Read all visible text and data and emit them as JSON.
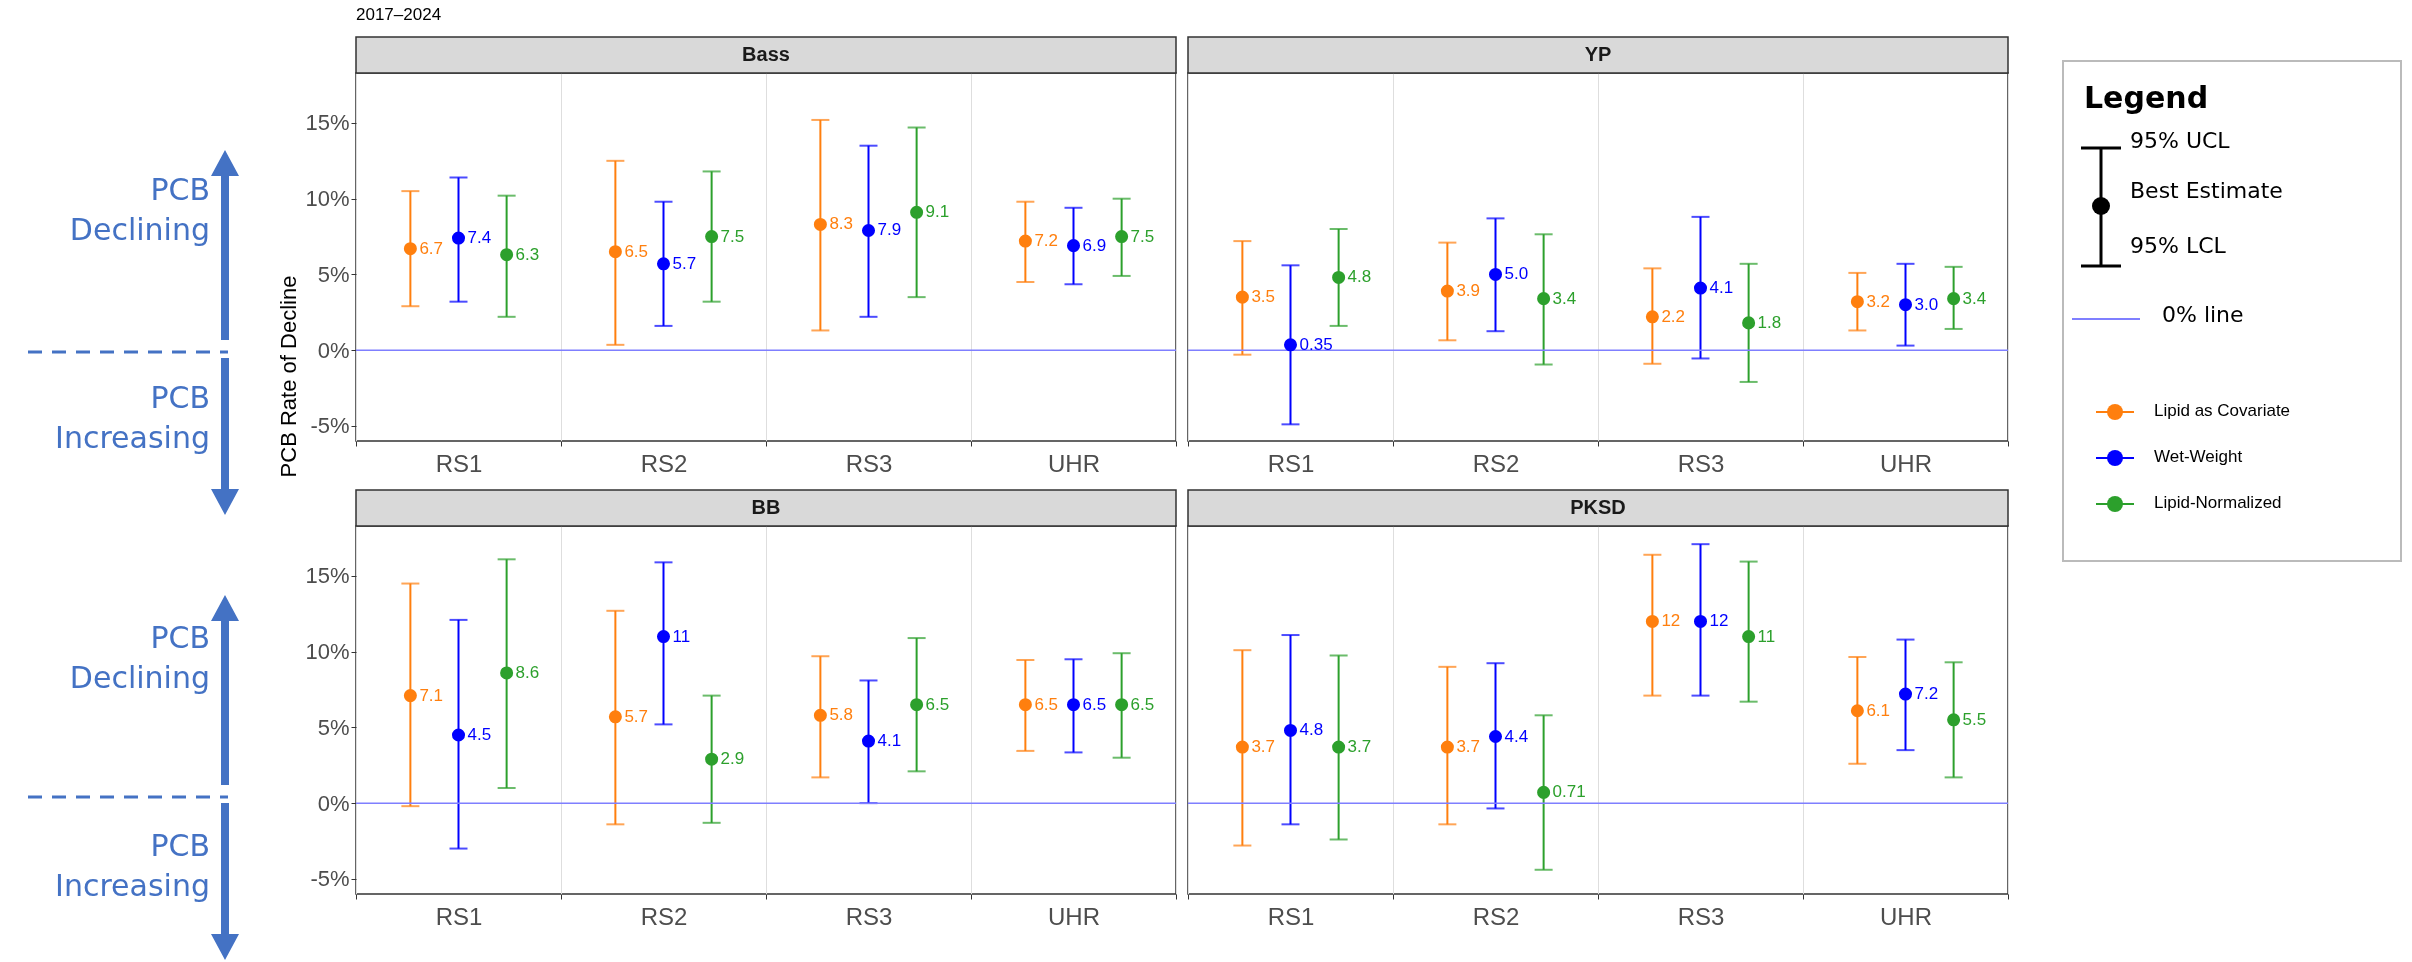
{
  "chart_data": [
    {
      "type": "scatter",
      "title": "Bass",
      "subtitle": "2017–2024",
      "ylabel": "PCB Rate of Decline",
      "legend_title": "Legend",
      "legend": "right",
      "marker": "circle",
      "grid": "x",
      "annotations": [
        "PCB Declining",
        "PCB Increasing",
        "PCB Declining",
        "PCB Increasing",
        "95% UCL",
        "Best Estimate",
        "95% LCL"
      ],
      "categories": [
        "RS1",
        "RS2",
        "RS3",
        "UHR"
      ],
      "ylim": [
        -6.0,
        18.3
      ],
      "yticks": [
        {
          "value": -5,
          "label": "-5%"
        },
        {
          "value": 0,
          "label": "0%"
        },
        {
          "value": 5,
          "label": "5%"
        },
        {
          "value": 10,
          "label": "10%"
        },
        {
          "value": 15,
          "label": "15%"
        }
      ],
      "ref_lines": [
        {
          "axis": "y",
          "value": 0,
          "label": "0% line",
          "color": "#7f7fff"
        }
      ],
      "series": [
        {
          "name": "Lipid as Covariate",
          "color": "#ff7f0e",
          "values": [
            6.7,
            6.5,
            8.3,
            7.2
          ],
          "value_labels": [
            "6.7",
            "6.5",
            "8.3",
            "7.2"
          ],
          "errors": [
            [
              2.9,
              10.5
            ],
            [
              0.35,
              12.5
            ],
            [
              1.3,
              15.2
            ],
            [
              4.5,
              9.8
            ]
          ]
        },
        {
          "name": "Wet-Weight",
          "color": "#0000ff",
          "values": [
            7.4,
            5.7,
            7.9,
            6.9
          ],
          "value_labels": [
            "7.4",
            "5.7",
            "7.9",
            "6.9"
          ],
          "errors": [
            [
              3.2,
              11.4
            ],
            [
              1.6,
              9.8
            ],
            [
              2.2,
              13.5
            ],
            [
              4.35,
              9.4
            ]
          ]
        },
        {
          "name": "Lipid-Normalized",
          "color": "#2ca02c",
          "values": [
            6.3,
            7.5,
            9.1,
            7.5
          ],
          "value_labels": [
            "6.3",
            "7.5",
            "9.1",
            "7.5"
          ],
          "errors": [
            [
              2.2,
              10.2
            ],
            [
              3.2,
              11.8
            ],
            [
              3.5,
              14.7
            ],
            [
              4.9,
              10.0
            ]
          ]
        }
      ]
    },
    {
      "type": "scatter",
      "title": "YP",
      "marker": "circle",
      "grid": "x",
      "tick_labels": "x",
      "categories": [
        "RS1",
        "RS2",
        "RS3",
        "UHR"
      ],
      "ylim": [
        -6.0,
        18.3
      ],
      "ref_lines": [
        {
          "axis": "y",
          "value": 0,
          "color": "#7f7fff"
        }
      ],
      "series": [
        {
          "name": "Lipid as Covariate",
          "color": "#ff7f0e",
          "values": [
            3.5,
            3.9,
            2.2,
            3.2
          ],
          "value_labels": [
            "3.5",
            "3.9",
            "2.2",
            "3.2"
          ],
          "errors": [
            [
              -0.3,
              7.2
            ],
            [
              0.65,
              7.1
            ],
            [
              -0.9,
              5.4
            ],
            [
              1.3,
              5.1
            ]
          ]
        },
        {
          "name": "Wet-Weight",
          "color": "#0000ff",
          "values": [
            0.35,
            5.0,
            4.1,
            3.0
          ],
          "value_labels": [
            "0.35",
            "5.0",
            "4.1",
            "3.0"
          ],
          "errors": [
            [
              -4.9,
              5.6
            ],
            [
              1.25,
              8.7
            ],
            [
              -0.55,
              8.8
            ],
            [
              0.3,
              5.7
            ]
          ]
        },
        {
          "name": "Lipid-Normalized",
          "color": "#2ca02c",
          "values": [
            4.8,
            3.4,
            1.8,
            3.4
          ],
          "value_labels": [
            "4.8",
            "3.4",
            "1.8",
            "3.4"
          ],
          "errors": [
            [
              1.6,
              8.0
            ],
            [
              -0.95,
              7.65
            ],
            [
              -2.1,
              5.7
            ],
            [
              1.4,
              5.5
            ]
          ]
        }
      ]
    },
    {
      "type": "scatter",
      "title": "BB",
      "marker": "circle",
      "grid": "x",
      "categories": [
        "RS1",
        "RS2",
        "RS3",
        "UHR"
      ],
      "ylim": [
        -6.0,
        18.3
      ],
      "yticks": [
        {
          "value": -5,
          "label": "-5%"
        },
        {
          "value": 0,
          "label": "0%"
        },
        {
          "value": 5,
          "label": "5%"
        },
        {
          "value": 10,
          "label": "10%"
        },
        {
          "value": 15,
          "label": "15%"
        }
      ],
      "ref_lines": [
        {
          "axis": "y",
          "value": 0,
          "color": "#7f7fff"
        }
      ],
      "series": [
        {
          "name": "Lipid as Covariate",
          "color": "#ff7f0e",
          "values": [
            7.1,
            5.7,
            5.8,
            6.5
          ],
          "value_labels": [
            "7.1",
            "5.7",
            "5.8",
            "6.5"
          ],
          "errors": [
            [
              -0.2,
              14.5
            ],
            [
              -1.4,
              12.7
            ],
            [
              1.7,
              9.7
            ],
            [
              3.45,
              9.45
            ]
          ]
        },
        {
          "name": "Wet-Weight",
          "color": "#0000ff",
          "values": [
            4.5,
            11,
            4.1,
            6.5
          ],
          "value_labels": [
            "4.5",
            "11",
            "4.1",
            "6.5"
          ],
          "errors": [
            [
              -3.0,
              12.1
            ],
            [
              5.2,
              15.9
            ],
            [
              0.0,
              8.1
            ],
            [
              3.35,
              9.5
            ]
          ]
        },
        {
          "name": "Lipid-Normalized",
          "color": "#2ca02c",
          "values": [
            8.6,
            2.9,
            6.5,
            6.5
          ],
          "value_labels": [
            "8.6",
            "2.9",
            "6.5",
            "6.5"
          ],
          "errors": [
            [
              1.0,
              16.1
            ],
            [
              -1.3,
              7.1
            ],
            [
              2.1,
              10.9
            ],
            [
              3.0,
              9.9
            ]
          ]
        }
      ]
    },
    {
      "type": "scatter",
      "title": "PKSD",
      "marker": "circle",
      "grid": "x",
      "tick_labels": "x",
      "categories": [
        "RS1",
        "RS2",
        "RS3",
        "UHR"
      ],
      "ylim": [
        -6.0,
        18.3
      ],
      "ref_lines": [
        {
          "axis": "y",
          "value": 0,
          "color": "#7f7fff"
        }
      ],
      "series": [
        {
          "name": "Lipid as Covariate",
          "color": "#ff7f0e",
          "values": [
            3.7,
            3.7,
            12,
            6.1
          ],
          "value_labels": [
            "3.7",
            "3.7",
            "12",
            "6.1"
          ],
          "errors": [
            [
              -2.8,
              10.1
            ],
            [
              -1.4,
              9.0
            ],
            [
              7.1,
              16.4
            ],
            [
              2.6,
              9.65
            ]
          ]
        },
        {
          "name": "Wet-Weight",
          "color": "#0000ff",
          "values": [
            4.8,
            4.4,
            12,
            7.2
          ],
          "value_labels": [
            "4.8",
            "4.4",
            "12",
            "7.2"
          ],
          "errors": [
            [
              -1.4,
              11.1
            ],
            [
              -0.35,
              9.24
            ],
            [
              7.1,
              17.1
            ],
            [
              3.5,
              10.8
            ]
          ]
        },
        {
          "name": "Lipid-Normalized",
          "color": "#2ca02c",
          "values": [
            3.7,
            0.71,
            11,
            5.5
          ],
          "value_labels": [
            "3.7",
            "0.71",
            "11",
            "5.5"
          ],
          "errors": [
            [
              -2.4,
              9.75
            ],
            [
              -4.4,
              5.8
            ],
            [
              6.7,
              15.95
            ],
            [
              1.7,
              9.3
            ]
          ]
        }
      ]
    }
  ]
}
